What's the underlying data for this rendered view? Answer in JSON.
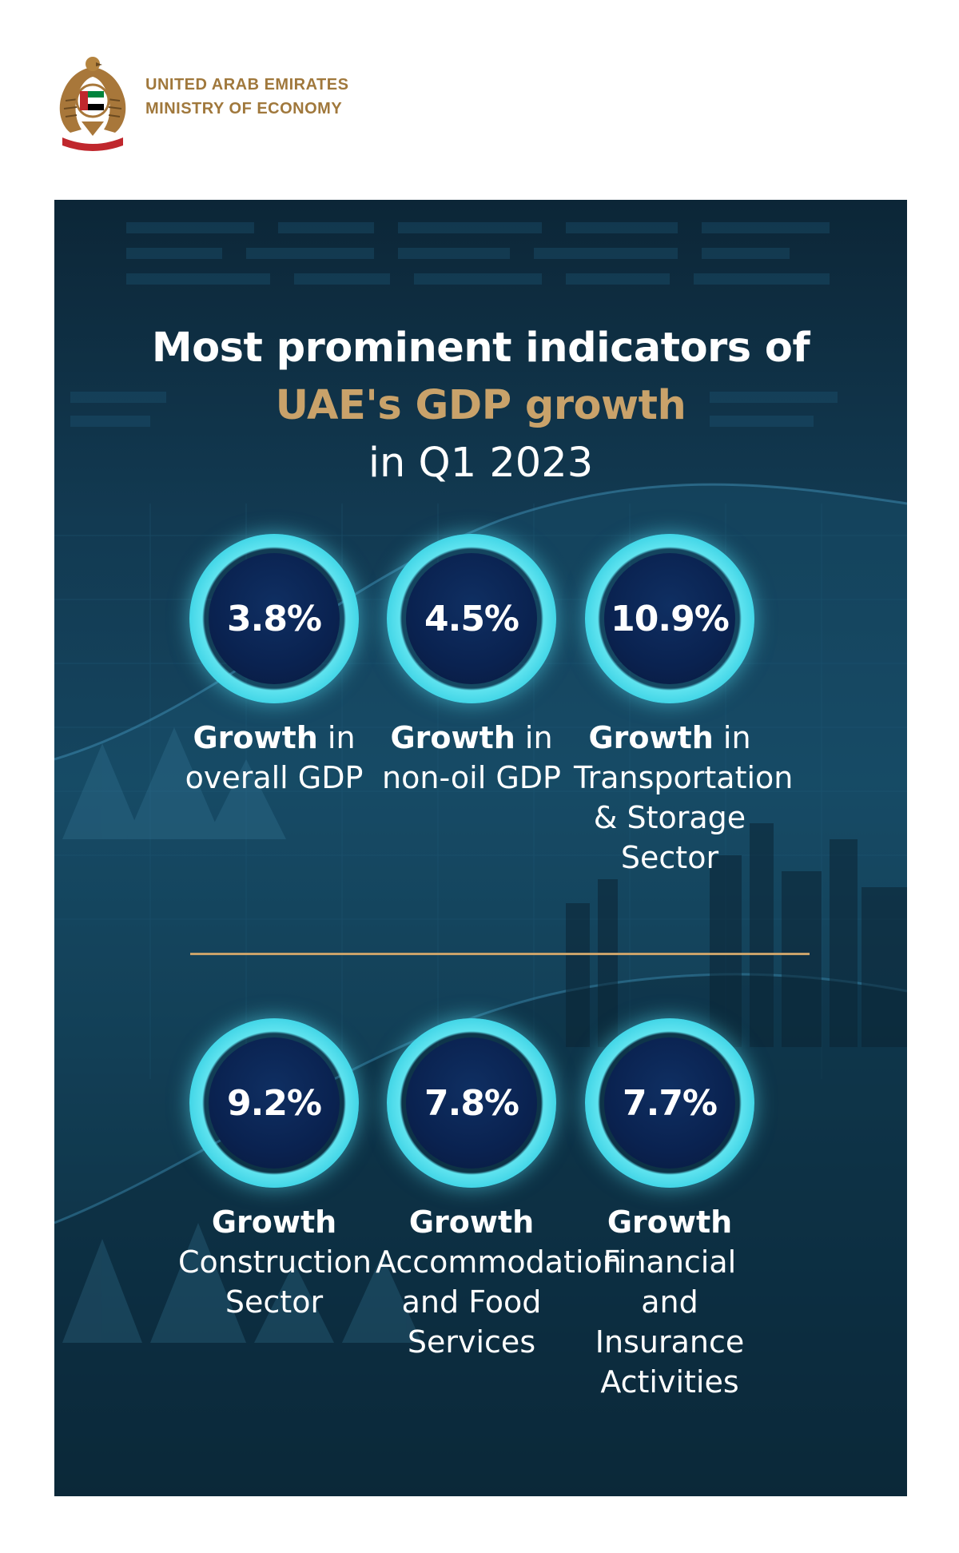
{
  "header": {
    "org_line1": "UNITED ARAB EMIRATES",
    "org_line2": "MINISTRY OF ECONOMY",
    "emblem": "uae-falcon-emblem"
  },
  "title": {
    "line1": "Most prominent indicators of",
    "line2": "UAE's GDP growth",
    "line3": "in Q1 2023"
  },
  "colors": {
    "accent_gold": "#c9a26a",
    "ring_cyan": "#5fe3ef",
    "panel_dark": "#0c2637",
    "circle_navy": "#0a2250"
  },
  "stats": [
    {
      "value": "3.8%",
      "label_bold": "Growth",
      "label_rest": " in overall GDP"
    },
    {
      "value": "4.5%",
      "label_bold": "Growth",
      "label_rest": " in non-oil GDP"
    },
    {
      "value": "10.9%",
      "label_bold": "Growth",
      "label_rest": " in Transportation & Storage Sector"
    },
    {
      "value": "9.2%",
      "label_bold": "Growth",
      "label_rest": " Construction Sector"
    },
    {
      "value": "7.8%",
      "label_bold": "Growth",
      "label_rest": " Accommodation and Food Services"
    },
    {
      "value": "7.7%",
      "label_bold": "Growth",
      "label_rest": " Financial and Insurance Activities"
    }
  ]
}
